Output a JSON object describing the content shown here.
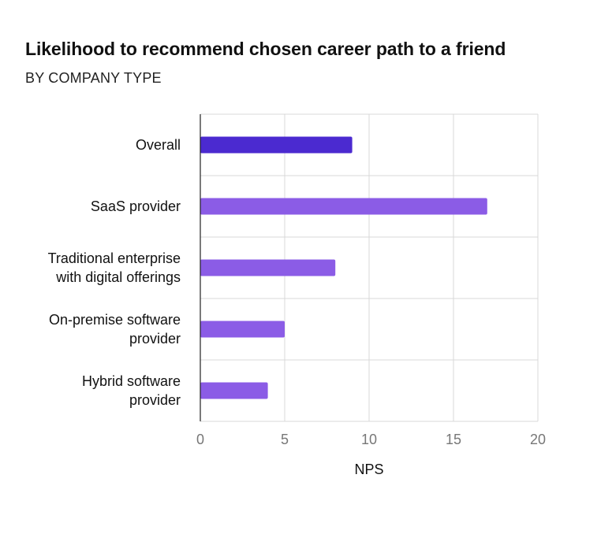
{
  "chart_data": {
    "type": "bar",
    "orientation": "horizontal",
    "title": "Likelihood to recommend chosen career path to a friend",
    "subtitle": "BY COMPANY TYPE",
    "xlabel": "NPS",
    "ylabel": "",
    "xlim": [
      0,
      20
    ],
    "xticks": [
      0,
      5,
      10,
      15,
      20
    ],
    "grid": true,
    "categories": [
      [
        "Overall"
      ],
      [
        "SaaS provider"
      ],
      [
        "Traditional enterprise",
        "with digital offerings"
      ],
      [
        "On-premise software",
        "provider"
      ],
      [
        "Hybrid software",
        "provider"
      ]
    ],
    "values": [
      9,
      17,
      8,
      5,
      4
    ],
    "colors": [
      "#4b2ad0",
      "#8b5ce6",
      "#8b5ce6",
      "#8b5ce6",
      "#8b5ce6"
    ]
  }
}
